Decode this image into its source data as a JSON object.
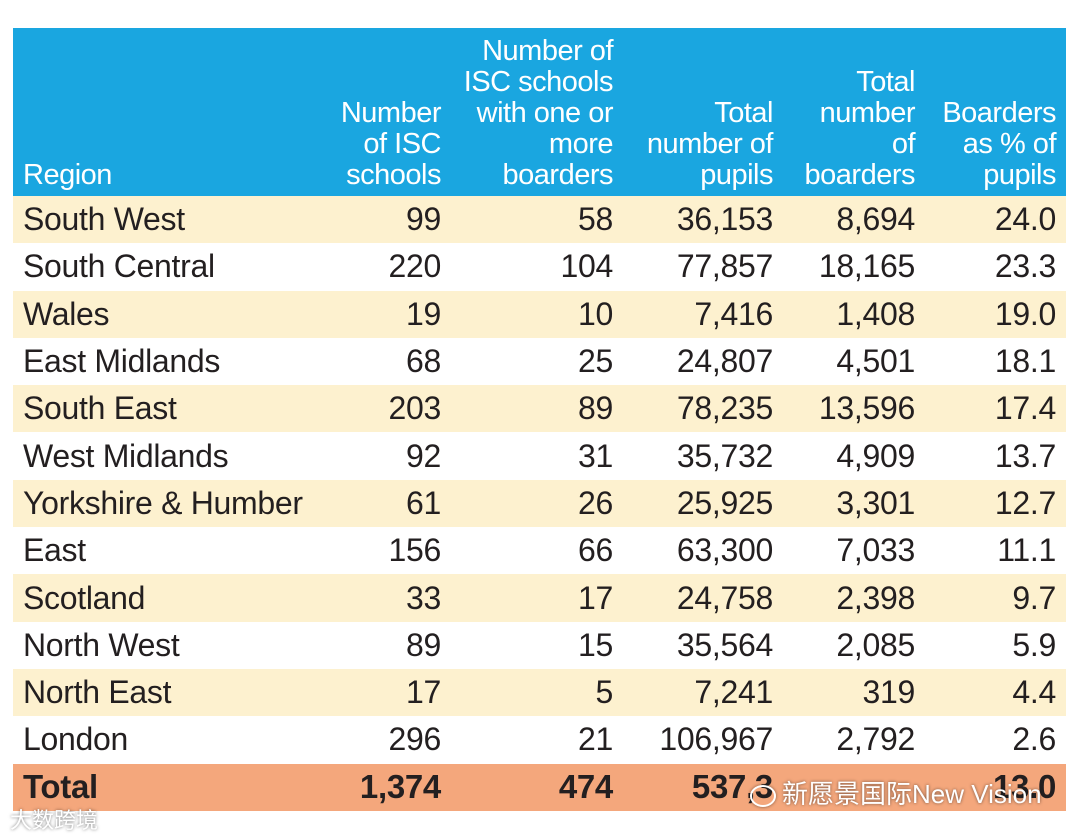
{
  "colors": {
    "header_bg": "#1aa6e0",
    "shade_row": "#fdf1cf",
    "total_row": "#f4a77c"
  },
  "headers": [
    "Region",
    "Number of ISC schools",
    "Number of ISC schools with one or more boarders",
    "Total number of pupils",
    "Total number of boarders",
    "Boarders as % of pupils"
  ],
  "rows": [
    [
      "South West",
      "99",
      "58",
      "36,153",
      "8,694",
      "24.0"
    ],
    [
      "South Central",
      "220",
      "104",
      "77,857",
      "18,165",
      "23.3"
    ],
    [
      "Wales",
      "19",
      "10",
      "7,416",
      "1,408",
      "19.0"
    ],
    [
      "East Midlands",
      "68",
      "25",
      "24,807",
      "4,501",
      "18.1"
    ],
    [
      "South East",
      "203",
      "89",
      "78,235",
      "13,596",
      "17.4"
    ],
    [
      "West Midlands",
      "92",
      "31",
      "35,732",
      "4,909",
      "13.7"
    ],
    [
      "Yorkshire & Humber",
      "61",
      "26",
      "25,925",
      "3,301",
      "12.7"
    ],
    [
      "East",
      "156",
      "66",
      "63,300",
      "7,033",
      "11.1"
    ],
    [
      "Scotland",
      "33",
      "17",
      "24,758",
      "2,398",
      "9.7"
    ],
    [
      "North West",
      "89",
      "15",
      "35,564",
      "2,085",
      "5.9"
    ],
    [
      "North East",
      "17",
      "5",
      "7,241",
      "319",
      "4.4"
    ],
    [
      "London",
      "296",
      "21",
      "106,967",
      "2,792",
      "2.6"
    ]
  ],
  "total": [
    "Total",
    "1,374",
    "474",
    "537,3",
    "",
    "13.0"
  ],
  "watermarks": {
    "right": "新愿景国际New Vision",
    "left": "大数跨境"
  }
}
